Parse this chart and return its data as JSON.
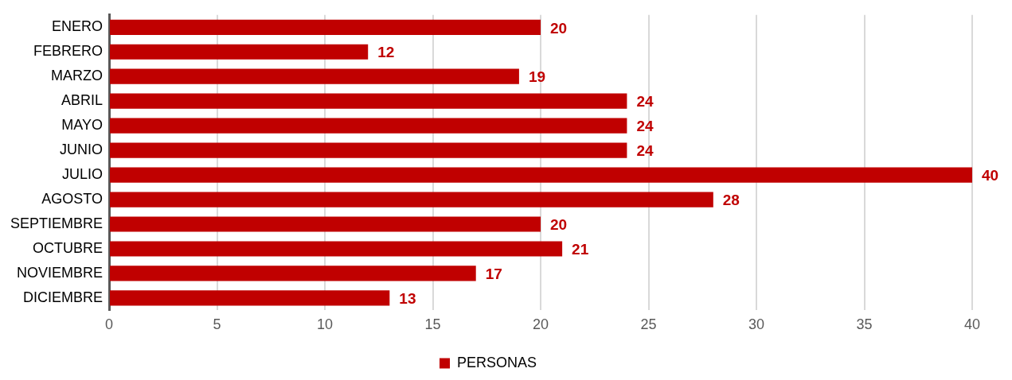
{
  "chart_data": {
    "type": "bar",
    "orientation": "horizontal",
    "categories": [
      "ENERO",
      "FEBRERO",
      "MARZO",
      "ABRIL",
      "MAYO",
      "JUNIO",
      "JULIO",
      "AGOSTO",
      "SEPTIEMBRE",
      "OCTUBRE",
      "NOVIEMBRE",
      "DICIEMBRE"
    ],
    "series": [
      {
        "name": "PERSONAS",
        "color": "#c00000",
        "values": [
          20,
          12,
          19,
          24,
          24,
          24,
          40,
          28,
          20,
          21,
          17,
          13
        ]
      }
    ],
    "xlim": [
      0,
      40
    ],
    "xticks": [
      0,
      5,
      10,
      15,
      20,
      25,
      30,
      35,
      40
    ],
    "grid": "x",
    "legend": "bottom",
    "data_labels": true
  }
}
